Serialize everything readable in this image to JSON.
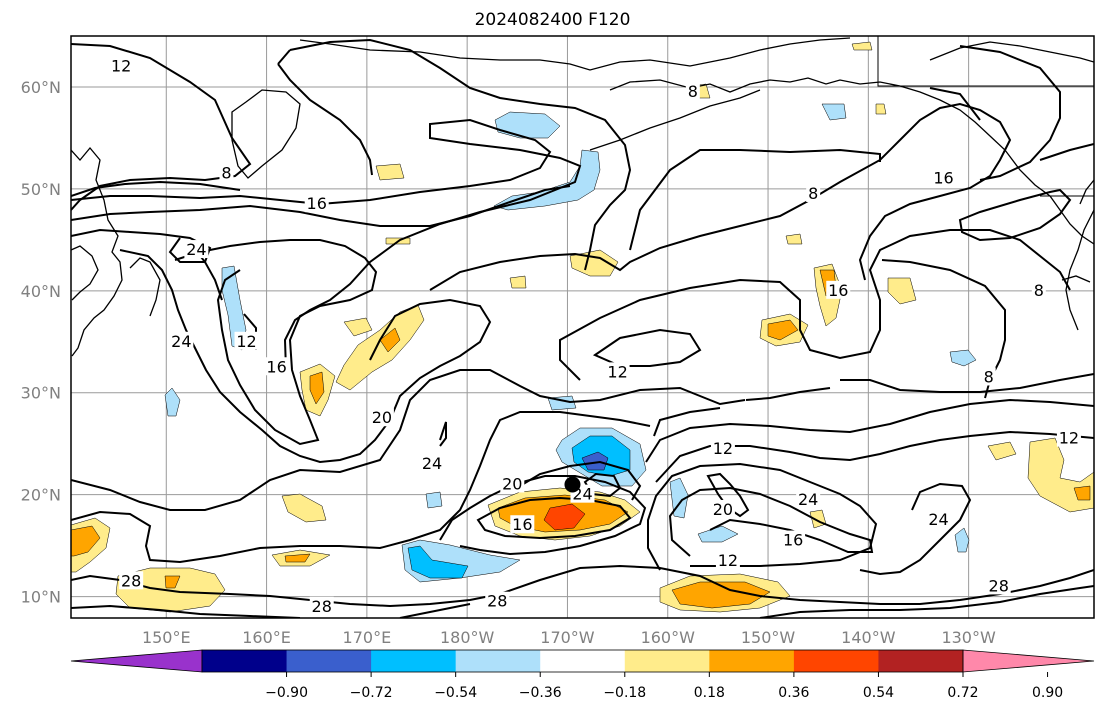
{
  "title": "2024082400 F120",
  "lat_labels": [
    {
      "text": "60°N",
      "lat": 60
    },
    {
      "text": "50°N",
      "lat": 50
    },
    {
      "text": "40°N",
      "lat": 40
    },
    {
      "text": "30°N",
      "lat": 30
    },
    {
      "text": "20°N",
      "lat": 20
    },
    {
      "text": "10°N",
      "lat": 10
    }
  ],
  "lon_labels": [
    {
      "text": "150°E",
      "lon": 150
    },
    {
      "text": "160°E",
      "lon": 160
    },
    {
      "text": "170°E",
      "lon": 170
    },
    {
      "text": "180°W",
      "lon": 180
    },
    {
      "text": "170°W",
      "lon": 190
    },
    {
      "text": "160°W",
      "lon": 200
    },
    {
      "text": "150°W",
      "lon": 210
    },
    {
      "text": "140°W",
      "lon": 220
    },
    {
      "text": "130°W",
      "lon": 230
    }
  ],
  "colorbar": {
    "colors": [
      "#9932cc",
      "#00008b",
      "#3a5fcd",
      "#00bfff",
      "#aee0fa",
      "#ffffff",
      "#ffec8b",
      "#ffa500",
      "#ff4500",
      "#b22222",
      "#ff88aa"
    ],
    "tick_labels": [
      "−0.90",
      "−0.72",
      "−0.54",
      "−0.36",
      "−0.18",
      "0.18",
      "0.36",
      "0.54",
      "0.72",
      "0.90"
    ]
  },
  "contour_labels": [
    {
      "text": "12",
      "lon": 145.5,
      "lat": 62
    },
    {
      "text": "8",
      "lon": 156,
      "lat": 51.5
    },
    {
      "text": "16",
      "lon": 165,
      "lat": 48.5
    },
    {
      "text": "24",
      "lon": 153,
      "lat": 44
    },
    {
      "text": "12",
      "lon": 158,
      "lat": 35
    },
    {
      "text": "24",
      "lon": 151.5,
      "lat": 35
    },
    {
      "text": "16",
      "lon": 161,
      "lat": 32.5
    },
    {
      "text": "20",
      "lon": 171.5,
      "lat": 27.5
    },
    {
      "text": "24",
      "lon": 176.5,
      "lat": 23
    },
    {
      "text": "20",
      "lon": 184.5,
      "lat": 21
    },
    {
      "text": "16",
      "lon": 185.5,
      "lat": 17
    },
    {
      "text": "24",
      "lon": 191.5,
      "lat": 20
    },
    {
      "text": "12",
      "lon": 195,
      "lat": 32
    },
    {
      "text": "8",
      "lon": 202.5,
      "lat": 59.5
    },
    {
      "text": "8",
      "lon": 214.5,
      "lat": 49.5
    },
    {
      "text": "16",
      "lon": 217,
      "lat": 40
    },
    {
      "text": "16",
      "lon": 227.5,
      "lat": 51
    },
    {
      "text": "8",
      "lon": 237,
      "lat": 40
    },
    {
      "text": "8",
      "lon": 232,
      "lat": 31.5
    },
    {
      "text": "12",
      "lon": 240,
      "lat": 25.5
    },
    {
      "text": "12",
      "lon": 205.5,
      "lat": 24.5
    },
    {
      "text": "20",
      "lon": 205.5,
      "lat": 18.5
    },
    {
      "text": "24",
      "lon": 214,
      "lat": 19.5
    },
    {
      "text": "16",
      "lon": 212.5,
      "lat": 15.5
    },
    {
      "text": "12",
      "lon": 206,
      "lat": 13.5
    },
    {
      "text": "24",
      "lon": 227,
      "lat": 17.5
    },
    {
      "text": "28",
      "lon": 146.5,
      "lat": 11.5
    },
    {
      "text": "28",
      "lon": 165.5,
      "lat": 9
    },
    {
      "text": "28",
      "lon": 183,
      "lat": 9.5
    },
    {
      "text": "28",
      "lon": 233,
      "lat": 11
    }
  ],
  "storm_marker": {
    "lon": 190.5,
    "lat": 21
  }
}
